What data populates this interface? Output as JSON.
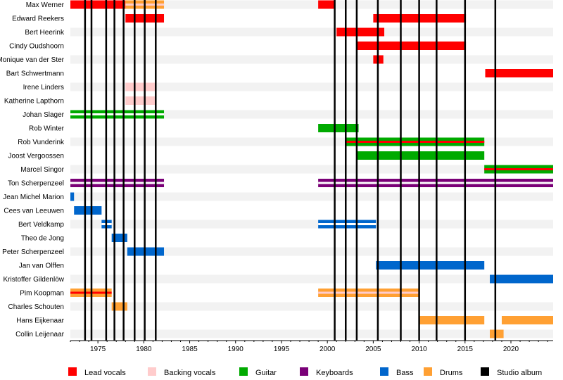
{
  "chart_data": {
    "type": "timeline",
    "x_range": [
      1972.0,
      2024.6
    ],
    "x_ticks": [
      "1975",
      "1980",
      "1985",
      "1990",
      "1995",
      "2000",
      "2005",
      "2010",
      "2015",
      "2020"
    ],
    "grid": "alternating row bands",
    "colors": {
      "lead_vocals": "#ff0000",
      "backing_vocals": "#ffcccc",
      "guitar": "#00aa00",
      "keyboards": "#7a0077",
      "bass": "#0066cc",
      "drums": "#ffa033",
      "studio_album": "#000000"
    },
    "legend": [
      {
        "key": "lead_vocals",
        "label": "Lead vocals"
      },
      {
        "key": "backing_vocals",
        "label": "Backing vocals"
      },
      {
        "key": "guitar",
        "label": "Guitar"
      },
      {
        "key": "keyboards",
        "label": "Keyboards"
      },
      {
        "key": "bass",
        "label": "Bass"
      },
      {
        "key": "drums",
        "label": "Drums"
      },
      {
        "key": "studio_album",
        "label": "Studio album"
      }
    ],
    "studio_albums": [
      1973.6,
      1974.3,
      1975.9,
      1976.8,
      1977.8,
      1979.0,
      1980.1,
      1981.3,
      2000.8,
      2002.0,
      2003.2,
      2005.5,
      2008.0,
      2010.0,
      2011.9,
      2015.0,
      2018.3
    ],
    "members": [
      {
        "name": "Max Werner",
        "spans": [
          {
            "role": "lead_vocals",
            "start": 1972.0,
            "end": 1978.0
          },
          {
            "role": "drums",
            "start": 1978.0,
            "end": 1982.2,
            "inner": "backing_vocals"
          },
          {
            "role": "lead_vocals",
            "start": 1999.0,
            "end": 2000.8
          }
        ]
      },
      {
        "name": "Edward Reekers",
        "spans": [
          {
            "role": "lead_vocals",
            "start": 1978.0,
            "end": 1982.2
          },
          {
            "role": "lead_vocals",
            "start": 2005.0,
            "end": 2015.1
          }
        ]
      },
      {
        "name": "Bert Heerink",
        "spans": [
          {
            "role": "lead_vocals",
            "start": 2001.0,
            "end": 2006.2
          }
        ]
      },
      {
        "name": "Cindy Oudshoorn",
        "spans": [
          {
            "role": "lead_vocals",
            "start": 2003.2,
            "end": 2015.1
          }
        ]
      },
      {
        "name": "Monique van der Ster",
        "spans": [
          {
            "role": "lead_vocals",
            "start": 2005.0,
            "end": 2006.1
          }
        ]
      },
      {
        "name": "Bart Schwertmann",
        "spans": [
          {
            "role": "lead_vocals",
            "start": 2017.2,
            "end": 2024.6
          }
        ]
      },
      {
        "name": "Irene Linders",
        "spans": [
          {
            "role": "backing_vocals",
            "start": 1978.0,
            "end": 1981.3
          }
        ]
      },
      {
        "name": "Katherine Lapthorn",
        "spans": [
          {
            "role": "backing_vocals",
            "start": 1978.0,
            "end": 1981.3
          }
        ]
      },
      {
        "name": "Johan Slager",
        "spans": [
          {
            "role": "guitar",
            "start": 1972.0,
            "end": 1982.2,
            "inner": "white"
          }
        ]
      },
      {
        "name": "Rob Winter",
        "spans": [
          {
            "role": "guitar",
            "start": 1999.0,
            "end": 2003.4
          }
        ]
      },
      {
        "name": "Rob Vunderink",
        "spans": [
          {
            "role": "guitar",
            "start": 2002.0,
            "end": 2017.1,
            "inner": "lead_vocals"
          }
        ]
      },
      {
        "name": "Joost Vergoossen",
        "spans": [
          {
            "role": "guitar",
            "start": 2003.2,
            "end": 2017.1
          }
        ]
      },
      {
        "name": "Marcel Singor",
        "spans": [
          {
            "role": "guitar",
            "start": 2017.1,
            "end": 2024.6,
            "inner": "lead_vocals"
          }
        ]
      },
      {
        "name": "Ton Scherpenzeel",
        "spans": [
          {
            "role": "keyboards",
            "start": 1972.0,
            "end": 1982.2,
            "inner": "white"
          },
          {
            "role": "keyboards",
            "start": 1999.0,
            "end": 2024.6,
            "inner": "white"
          }
        ]
      },
      {
        "name": "Jean Michel Marion",
        "spans": [
          {
            "role": "bass",
            "start": 1972.0,
            "end": 1972.4
          }
        ]
      },
      {
        "name": "Cees van Leeuwen",
        "spans": [
          {
            "role": "bass",
            "start": 1972.4,
            "end": 1975.4
          }
        ]
      },
      {
        "name": "Bert Veldkamp",
        "spans": [
          {
            "role": "bass",
            "start": 1975.4,
            "end": 1976.5,
            "inner": "white"
          },
          {
            "role": "bass",
            "start": 1999.0,
            "end": 2005.3,
            "inner": "white"
          }
        ]
      },
      {
        "name": "Theo de Jong",
        "spans": [
          {
            "role": "bass",
            "start": 1976.5,
            "end": 1978.2
          }
        ]
      },
      {
        "name": "Peter Scherpenzeel",
        "spans": [
          {
            "role": "bass",
            "start": 1978.2,
            "end": 1982.2
          }
        ]
      },
      {
        "name": "Jan van Olffen",
        "spans": [
          {
            "role": "bass",
            "start": 2005.3,
            "end": 2017.1
          }
        ]
      },
      {
        "name": "Kristoffer Gildenlöw",
        "spans": [
          {
            "role": "bass",
            "start": 2017.7,
            "end": 2024.6
          }
        ]
      },
      {
        "name": "Pim Koopman",
        "spans": [
          {
            "role": "drums",
            "start": 1972.0,
            "end": 1976.5,
            "inner": "lead_vocals"
          },
          {
            "role": "drums",
            "start": 1999.0,
            "end": 2010.0,
            "inner": "backing_vocals"
          }
        ]
      },
      {
        "name": "Charles Schouten",
        "spans": [
          {
            "role": "drums",
            "start": 1976.5,
            "end": 1978.2
          }
        ]
      },
      {
        "name": "Hans Eijkenaar",
        "spans": [
          {
            "role": "drums",
            "start": 2010.0,
            "end": 2017.1
          },
          {
            "role": "drums",
            "start": 2019.0,
            "end": 2024.6
          }
        ]
      },
      {
        "name": "Collin Leijenaar",
        "spans": [
          {
            "role": "drums",
            "start": 2017.7,
            "end": 2019.2
          }
        ]
      }
    ]
  }
}
